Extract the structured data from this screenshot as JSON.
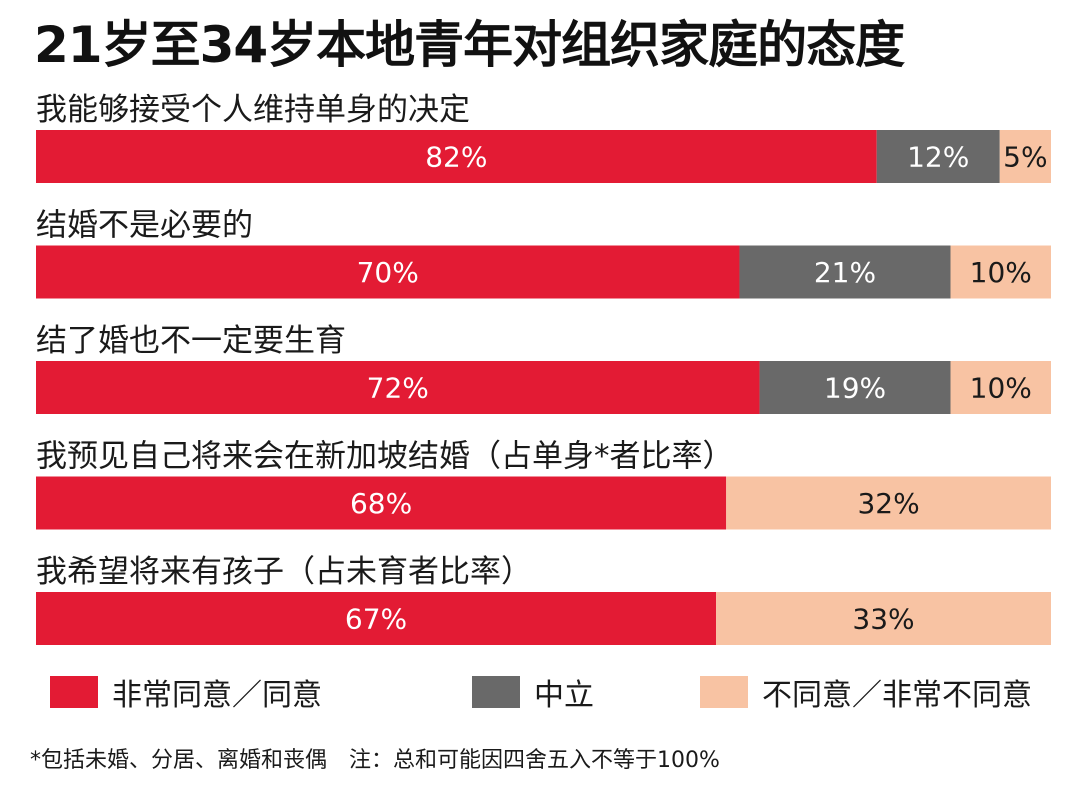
{
  "title": "21岁至34岁本地青年对组织家庭的态度",
  "colors": {
    "agree": "#e31b34",
    "neutral": "#696969",
    "disagree": "#f8c3a3",
    "agree_text": "#ffffff",
    "neutral_text": "#ffffff",
    "disagree_text": "#1a1a1a"
  },
  "chart_data": {
    "type": "bar",
    "orientation": "horizontal",
    "stacked": true,
    "title": "21岁至34岁本地青年对组织家庭的态度",
    "categories": [
      "我能够接受个人维持单身的决定",
      "结婚不是必要的",
      "结了婚也不一定要生育",
      "我预见自己将来会在新加坡结婚（占单身*者比率）",
      "我希望将来有孩子（占未育者比率）"
    ],
    "series": [
      {
        "name": "非常同意／同意",
        "values": [
          82,
          70,
          72,
          68,
          67
        ]
      },
      {
        "name": "中立",
        "values": [
          12,
          21,
          19,
          null,
          null
        ]
      },
      {
        "name": "不同意／非常不同意",
        "values": [
          5,
          10,
          10,
          32,
          33
        ]
      }
    ],
    "value_suffix": "%",
    "legend_position": "bottom"
  },
  "legend": [
    {
      "label": "非常同意／同意"
    },
    {
      "label": "中立"
    },
    {
      "label": "不同意／非常不同意"
    }
  ],
  "footnote": {
    "left": "*包括未婚、分居、离婚和丧偶",
    "right": "注：总和可能因四舍五入不等于100%"
  }
}
